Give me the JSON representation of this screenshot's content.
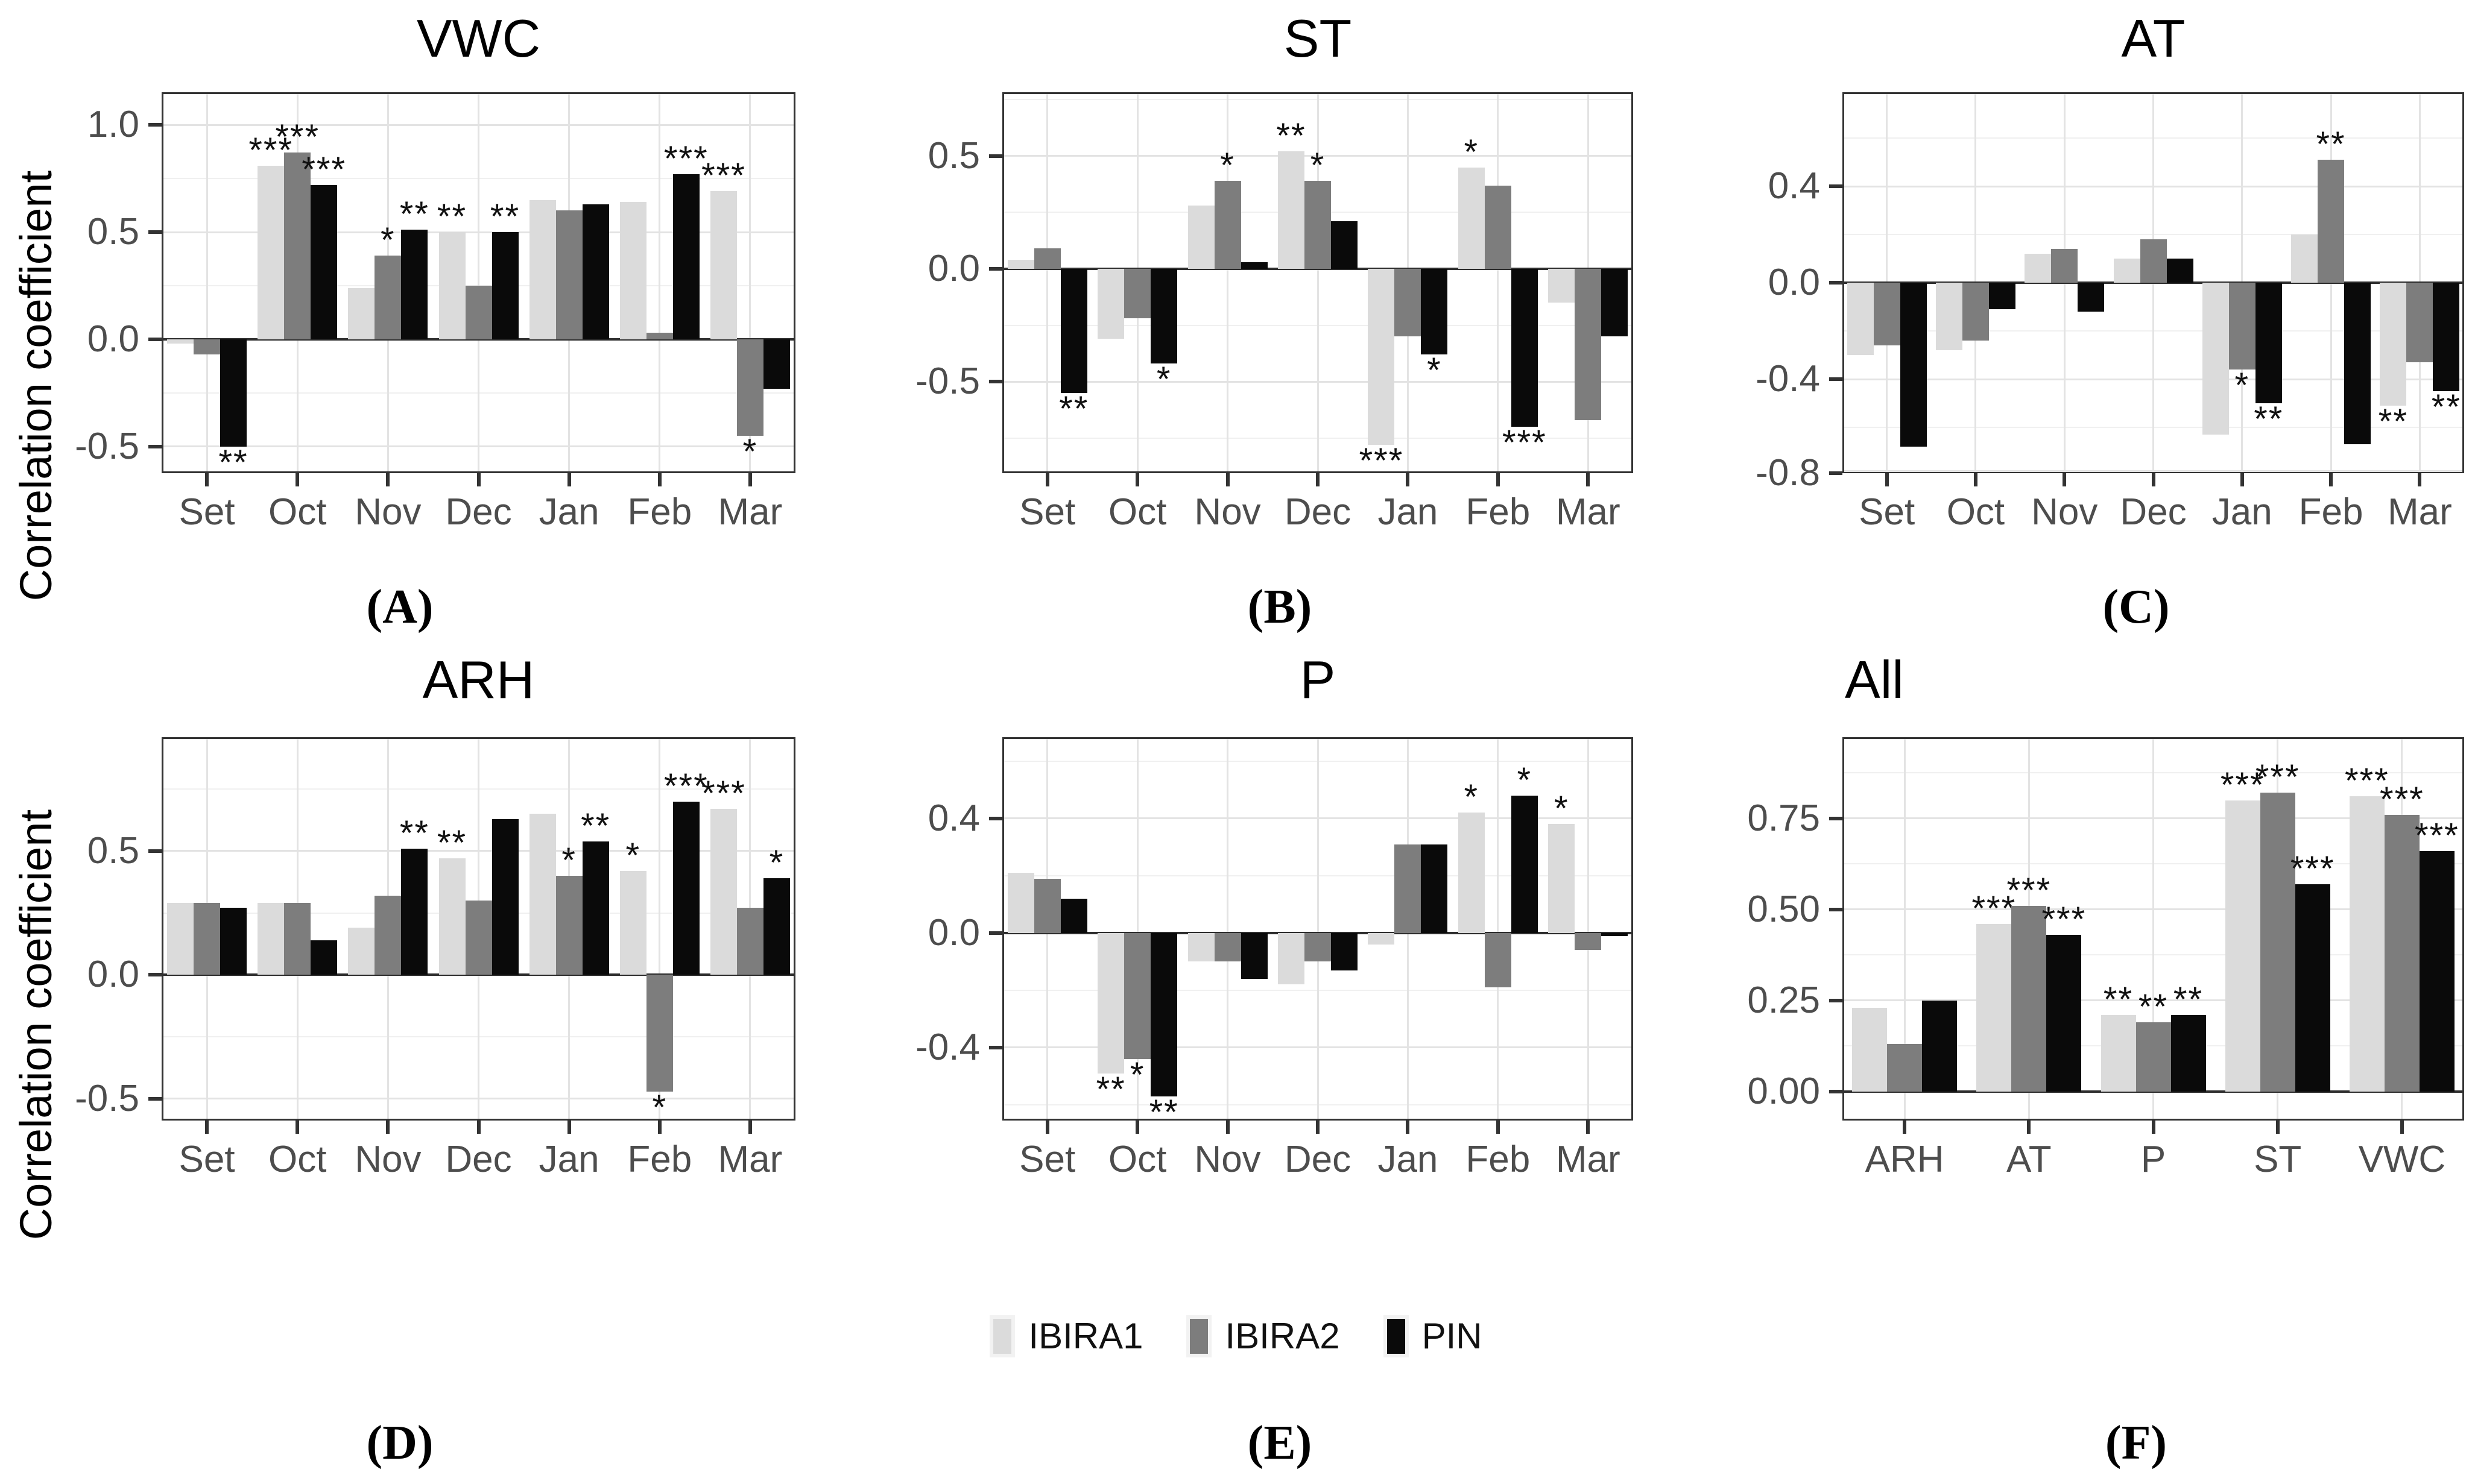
{
  "figure": {
    "ylabel": "Correlation coefficient"
  },
  "legend": {
    "position": "bottom-center",
    "items": [
      {
        "label": "IBIRA1",
        "color": "#dbdbdb"
      },
      {
        "label": "IBIRA2",
        "color": "#7d7d7d"
      },
      {
        "label": "PIN",
        "color": "#0a0a0a"
      }
    ]
  },
  "chart_data": [
    {
      "type": "bar",
      "panel_label": "(A)",
      "title": "VWC",
      "title_align": "center",
      "xlabel": "",
      "ylabel": "Correlation coefficient",
      "categories": [
        "Set",
        "Oct",
        "Nov",
        "Dec",
        "Jan",
        "Feb",
        "Mar"
      ],
      "ylim": [
        -0.624,
        1.152
      ],
      "yticks": [
        {
          "v": 1.0,
          "label": "1.0"
        },
        {
          "v": 0.5,
          "label": "0.5"
        },
        {
          "v": 0.0,
          "label": "0.0"
        },
        {
          "v": -0.5,
          "label": "-0.5"
        }
      ],
      "minor_step": 0.25,
      "grid": true,
      "series": [
        {
          "name": "IBIRA1",
          "values": [
            -0.02,
            0.81,
            0.24,
            0.5,
            0.65,
            0.64,
            0.69
          ],
          "sig": [
            "",
            "***",
            "",
            "**",
            "",
            "",
            "***"
          ]
        },
        {
          "name": "IBIRA2",
          "values": [
            -0.07,
            0.87,
            0.39,
            0.25,
            0.6,
            0.03,
            -0.45
          ],
          "sig": [
            "",
            "***",
            "*",
            "",
            "",
            "",
            "*"
          ]
        },
        {
          "name": "PIN",
          "values": [
            -0.5,
            0.72,
            0.51,
            0.5,
            0.63,
            0.77,
            -0.23
          ],
          "sig": [
            "**",
            "***",
            "**",
            "**",
            "",
            "***",
            ""
          ]
        }
      ]
    },
    {
      "type": "bar",
      "panel_label": "(B)",
      "title": "ST",
      "title_align": "center",
      "xlabel": "",
      "ylabel": "",
      "categories": [
        "Set",
        "Oct",
        "Nov",
        "Dec",
        "Jan",
        "Feb",
        "Mar"
      ],
      "ylim": [
        -0.906,
        0.783
      ],
      "yticks": [
        {
          "v": 0.5,
          "label": "0.5"
        },
        {
          "v": 0.0,
          "label": "0.0"
        },
        {
          "v": -0.5,
          "label": "-0.5"
        }
      ],
      "minor_step": 0.25,
      "grid": true,
      "series": [
        {
          "name": "IBIRA1",
          "values": [
            0.04,
            -0.31,
            0.28,
            0.52,
            -0.78,
            0.45,
            -0.15
          ],
          "sig": [
            "",
            "",
            "",
            "**",
            "***",
            "*",
            ""
          ]
        },
        {
          "name": "IBIRA2",
          "values": [
            0.09,
            -0.22,
            0.39,
            0.39,
            -0.3,
            0.37,
            -0.67
          ],
          "sig": [
            "",
            "",
            "*",
            "*",
            "",
            "",
            ""
          ]
        },
        {
          "name": "PIN",
          "values": [
            -0.55,
            -0.42,
            0.03,
            0.21,
            -0.38,
            -0.7,
            -0.3
          ],
          "sig": [
            "**",
            "*",
            "",
            "",
            "*",
            "***",
            ""
          ]
        }
      ]
    },
    {
      "type": "bar",
      "panel_label": "(C)",
      "title": "AT",
      "title_align": "center",
      "xlabel": "",
      "ylabel": "",
      "categories": [
        "Set",
        "Oct",
        "Nov",
        "Dec",
        "Jan",
        "Feb",
        "Mar"
      ],
      "ylim": [
        -0.79,
        0.79
      ],
      "yticks": [
        {
          "v": 0.4,
          "label": "0.4"
        },
        {
          "v": 0.0,
          "label": "0.0"
        },
        {
          "v": -0.4,
          "label": "-0.4"
        },
        {
          "v": -0.8,
          "label": "-0.8"
        }
      ],
      "minor_step": 0.2,
      "grid": true,
      "series": [
        {
          "name": "IBIRA1",
          "values": [
            -0.3,
            -0.28,
            0.12,
            0.1,
            -0.63,
            0.2,
            -0.51
          ],
          "sig": [
            "",
            "",
            "",
            "",
            "",
            "",
            "**"
          ]
        },
        {
          "name": "IBIRA2",
          "values": [
            -0.26,
            -0.24,
            0.14,
            0.18,
            -0.36,
            0.51,
            -0.33
          ],
          "sig": [
            "",
            "",
            "",
            "",
            "*",
            "**",
            ""
          ]
        },
        {
          "name": "PIN",
          "values": [
            -0.68,
            -0.11,
            -0.12,
            0.1,
            -0.5,
            -0.67,
            -0.45
          ],
          "sig": [
            "",
            "",
            "",
            "",
            "**",
            "",
            "**"
          ]
        }
      ]
    },
    {
      "type": "bar",
      "panel_label": "(D)",
      "title": "ARH",
      "title_align": "center",
      "xlabel": "",
      "ylabel": "Correlation coefficient",
      "categories": [
        "Set",
        "Oct",
        "Nov",
        "Dec",
        "Jan",
        "Feb",
        "Mar"
      ],
      "ylim": [
        -0.588,
        0.96
      ],
      "yticks": [
        {
          "v": 0.5,
          "label": "0.5"
        },
        {
          "v": 0.0,
          "label": "0.0"
        },
        {
          "v": -0.5,
          "label": "-0.5"
        }
      ],
      "minor_step": 0.25,
      "grid": true,
      "series": [
        {
          "name": "IBIRA1",
          "values": [
            0.29,
            0.29,
            0.19,
            0.47,
            0.65,
            0.42,
            0.67
          ],
          "sig": [
            "",
            "",
            "",
            "**",
            "",
            "*",
            "***"
          ]
        },
        {
          "name": "IBIRA2",
          "values": [
            0.29,
            0.29,
            0.32,
            0.3,
            0.4,
            -0.47,
            0.27
          ],
          "sig": [
            "",
            "",
            "",
            "",
            "*",
            "*",
            ""
          ]
        },
        {
          "name": "PIN",
          "values": [
            0.27,
            0.14,
            0.51,
            0.63,
            0.54,
            0.7,
            0.39
          ],
          "sig": [
            "",
            "",
            "**",
            "",
            "**",
            "***",
            "*"
          ]
        }
      ]
    },
    {
      "type": "bar",
      "panel_label": "(E)",
      "title": "P",
      "title_align": "center",
      "xlabel": "",
      "ylabel": "",
      "categories": [
        "Set",
        "Oct",
        "Nov",
        "Dec",
        "Jan",
        "Feb",
        "Mar"
      ],
      "ylim": [
        -0.655,
        0.684
      ],
      "yticks": [
        {
          "v": 0.4,
          "label": "0.4"
        },
        {
          "v": 0.0,
          "label": "0.0"
        },
        {
          "v": -0.4,
          "label": "-0.4"
        }
      ],
      "minor_step": 0.2,
      "grid": true,
      "series": [
        {
          "name": "IBIRA1",
          "values": [
            0.21,
            -0.49,
            -0.1,
            -0.18,
            -0.04,
            0.42,
            0.38
          ],
          "sig": [
            "",
            "**",
            "",
            "",
            "",
            "*",
            "*"
          ]
        },
        {
          "name": "IBIRA2",
          "values": [
            0.19,
            -0.44,
            -0.1,
            -0.1,
            0.31,
            -0.19,
            -0.06
          ],
          "sig": [
            "",
            "*",
            "",
            "",
            "",
            "",
            ""
          ]
        },
        {
          "name": "PIN",
          "values": [
            0.12,
            -0.57,
            -0.16,
            -0.13,
            0.31,
            0.48,
            -0.01
          ],
          "sig": [
            "",
            "**",
            "",
            "",
            "",
            "*",
            ""
          ]
        }
      ]
    },
    {
      "type": "bar",
      "panel_label": "(F)",
      "title": "All",
      "title_align": "left",
      "xlabel": "",
      "ylabel": "",
      "categories": [
        "ARH",
        "AT",
        "P",
        "ST",
        "VWC"
      ],
      "ylim": [
        -0.0795,
        0.973
      ],
      "yticks": [
        {
          "v": 0.75,
          "label": "0.75"
        },
        {
          "v": 0.5,
          "label": "0.50"
        },
        {
          "v": 0.25,
          "label": "0.25"
        },
        {
          "v": 0.0,
          "label": "0.00"
        }
      ],
      "minor_step": 0.125,
      "grid": true,
      "series": [
        {
          "name": "IBIRA1",
          "values": [
            0.23,
            0.46,
            0.21,
            0.8,
            0.81
          ],
          "sig": [
            "",
            "***",
            "**",
            "***",
            "***"
          ]
        },
        {
          "name": "IBIRA2",
          "values": [
            0.13,
            0.51,
            0.19,
            0.82,
            0.76
          ],
          "sig": [
            "",
            "***",
            "**",
            "***",
            "***"
          ]
        },
        {
          "name": "PIN",
          "values": [
            0.25,
            0.43,
            0.21,
            0.57,
            0.66
          ],
          "sig": [
            "",
            "***",
            "**",
            "***",
            "***"
          ]
        }
      ]
    }
  ]
}
